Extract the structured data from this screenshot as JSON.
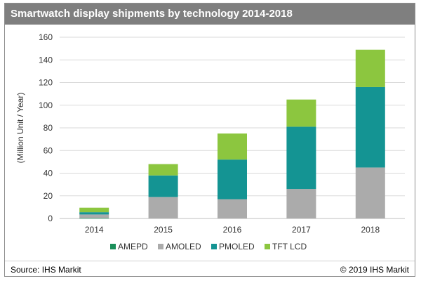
{
  "title": "Smartwatch display shipments by technology 2014-2018",
  "source": "Source: IHS Markit",
  "copyright": "© 2019 IHS Markit",
  "colors": {
    "AMEPD": "#1a8f5a",
    "AMOLED": "#ababab",
    "PMOLED": "#149493",
    "TFT LCD": "#8cc63f",
    "title_bar": "#7f7f7f"
  },
  "chart_data": {
    "type": "bar",
    "stacked": true,
    "title": "Smartwatch display shipments by technology 2014-2018",
    "xlabel": "",
    "ylabel": "(Million Unit / Year)",
    "categories": [
      "2014",
      "2015",
      "2016",
      "2017",
      "2018"
    ],
    "ylim": [
      0,
      160
    ],
    "yticks": [
      0,
      20,
      40,
      60,
      80,
      100,
      120,
      140,
      160
    ],
    "grid": true,
    "legend_position": "bottom",
    "series": [
      {
        "name": "AMEPD",
        "values": [
          0.5,
          0,
          0,
          0,
          0
        ]
      },
      {
        "name": "AMOLED",
        "values": [
          3,
          19,
          17,
          26,
          45
        ]
      },
      {
        "name": "PMOLED",
        "values": [
          2,
          19,
          35,
          55,
          71
        ]
      },
      {
        "name": "TFT LCD",
        "values": [
          4,
          10,
          23,
          24,
          33
        ]
      }
    ]
  }
}
